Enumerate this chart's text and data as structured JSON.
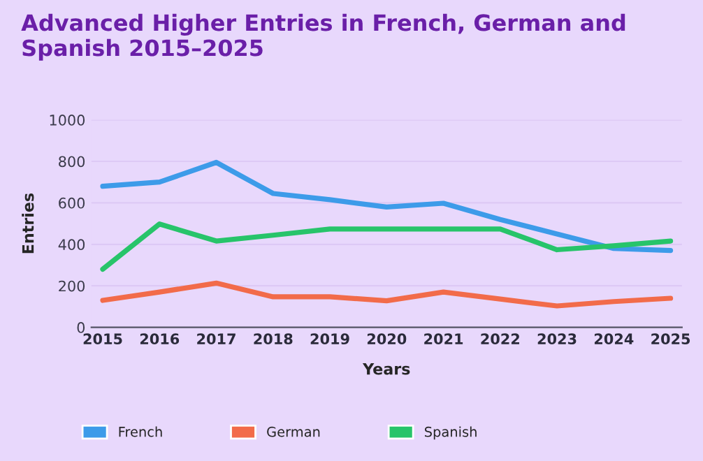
{
  "chart_data": {
    "type": "line",
    "title": "Advanced Higher Entries in French, German and Spanish 2015–2025",
    "xlabel": "Years",
    "ylabel": "Entries",
    "categories": [
      "2015",
      "2016",
      "2017",
      "2018",
      "2019",
      "2020",
      "2021",
      "2022",
      "2023",
      "2024",
      "2025"
    ],
    "series": [
      {
        "name": "French",
        "color": "#3d9be9",
        "values": [
          680,
          700,
          795,
          645,
          615,
          580,
          598,
          520,
          450,
          380,
          370
        ]
      },
      {
        "name": "German",
        "color": "#f26b4a",
        "values": [
          130,
          170,
          213,
          147,
          147,
          128,
          170,
          136,
          103,
          124,
          140
        ]
      },
      {
        "name": "Spanish",
        "color": "#27c46a",
        "values": [
          280,
          498,
          416,
          444,
          474,
          474,
          474,
          474,
          374,
          393,
          416
        ]
      }
    ],
    "ylim": [
      0,
      1000
    ],
    "yticks": [
      0,
      200,
      400,
      600,
      800,
      1000
    ],
    "grid": "y",
    "legend": "bottom",
    "marker": "none",
    "line_style": "solid"
  }
}
